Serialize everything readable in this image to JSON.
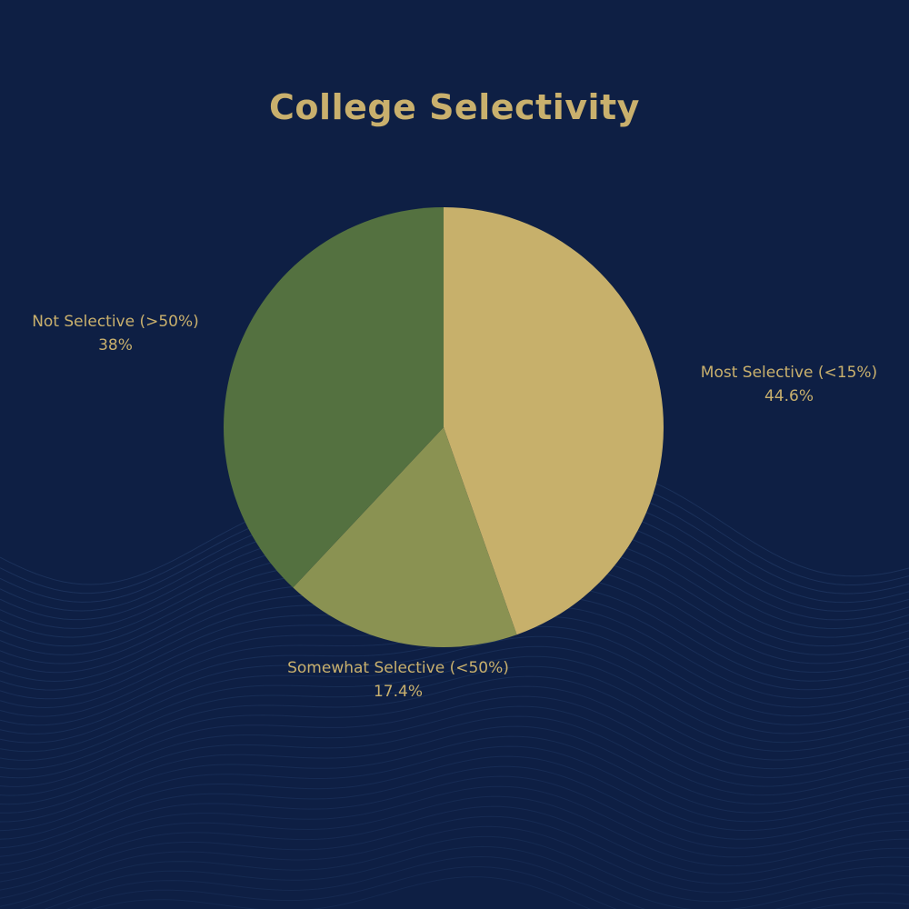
{
  "colors": {
    "background": "#0e1f44",
    "text": "#c9b06d",
    "wave_line": "#26406e"
  },
  "chart_data": {
    "type": "pie",
    "title": "College Selectivity",
    "slices": [
      {
        "name": "Most Selective (<15%)",
        "value": 44.6,
        "label": "44.6%",
        "color": "#c7b06b"
      },
      {
        "name": "Somewhat Selective (<50%)",
        "value": 17.4,
        "label": "17.4%",
        "color": "#8a9252"
      },
      {
        "name": "Not Selective (>50%)",
        "value": 38,
        "label": "38%",
        "color": "#547140"
      }
    ],
    "start_angle": "12 o'clock",
    "direction": "clockwise",
    "legend": "none",
    "labels": "outside slices"
  }
}
